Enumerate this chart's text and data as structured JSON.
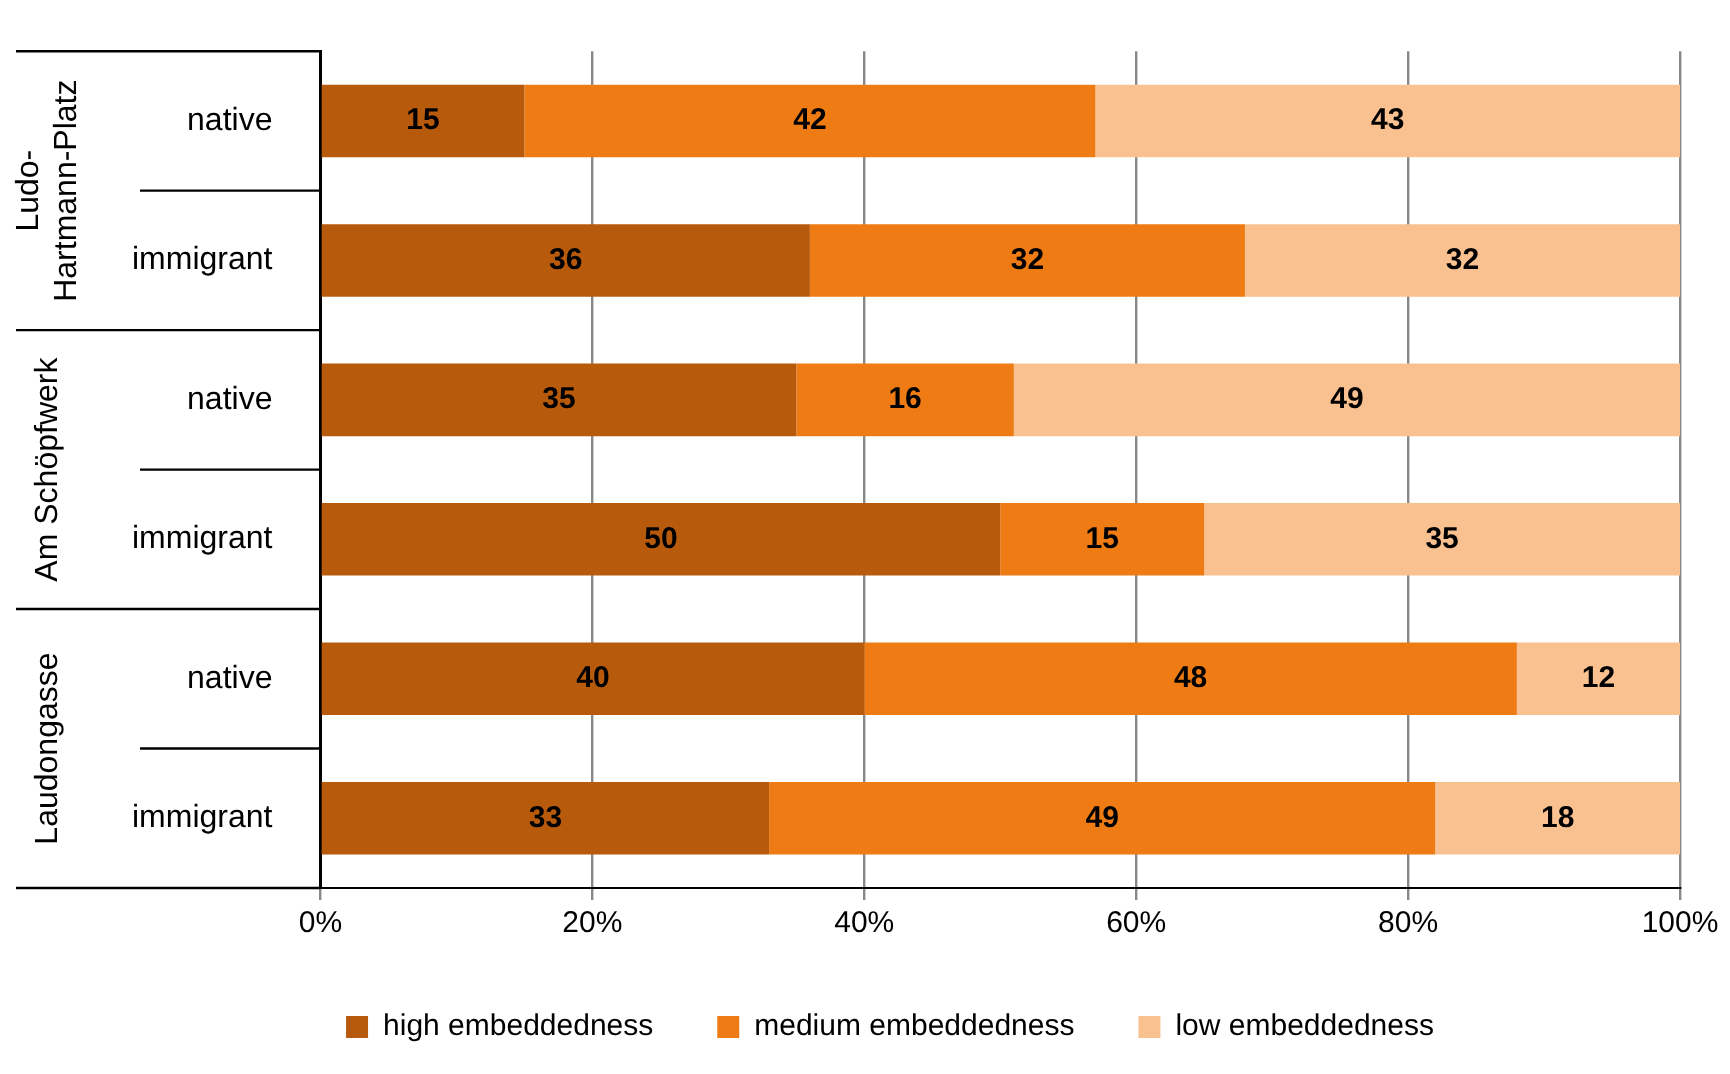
{
  "chart_data": {
    "type": "bar",
    "orientation": "horizontal",
    "stacked": true,
    "data_labels": true,
    "grid": "x",
    "legend": "bottom",
    "categories": [
      "native",
      "immigrant",
      "native",
      "immigrant",
      "native",
      "immigrant"
    ],
    "annotations": [
      "Ludo-\nHartmann-Platz",
      "Am Schöpfwerk",
      "Laudongasse"
    ],
    "series": [
      {
        "name": "high embeddedness",
        "color": "#b85a0c",
        "values": [
          15,
          36,
          35,
          50,
          40,
          33
        ]
      },
      {
        "name": "medium embeddedness",
        "color": "#ee7b13",
        "values": [
          42,
          32,
          16,
          15,
          48,
          49
        ]
      },
      {
        "name": "low embeddedness",
        "color": "#f9c190",
        "values": [
          43,
          32,
          49,
          35,
          12,
          18
        ]
      }
    ],
    "xlim": [
      0,
      100
    ],
    "xticks": [
      {
        "value": 0,
        "label": "0%"
      },
      {
        "value": 20,
        "label": "20%"
      },
      {
        "value": 40,
        "label": "40%"
      },
      {
        "value": 60,
        "label": "60%"
      },
      {
        "value": 80,
        "label": "80%"
      },
      {
        "value": 100,
        "label": "100%"
      }
    ]
  }
}
